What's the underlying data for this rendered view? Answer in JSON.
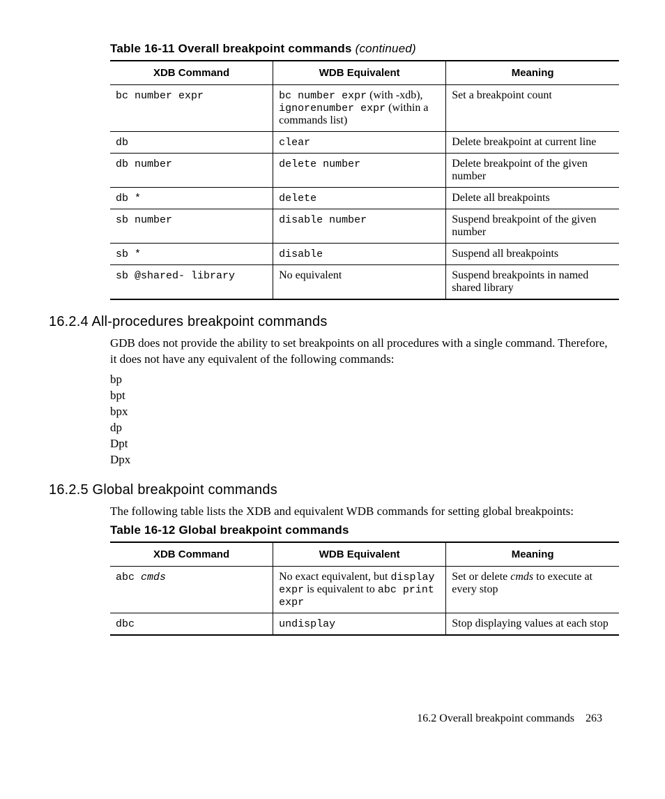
{
  "table1": {
    "caption_prefix": "Table 16-11 Overall breakpoint commands ",
    "caption_suffix": "(continued)",
    "headers": [
      "XDB Command",
      "WDB Equivalent",
      "Meaning"
    ],
    "rows": [
      {
        "xdb_mono": "bc number expr",
        "wdb_parts": [
          {
            "t": "bc number expr",
            "mono": true
          },
          {
            "t": " (with -xdb), ",
            "mono": false
          },
          {
            "t": "ignorenumber expr",
            "mono": true
          },
          {
            "t": " (within a commands list)",
            "mono": false
          }
        ],
        "meaning": "Set a breakpoint count"
      },
      {
        "xdb_mono": "db",
        "wdb_parts": [
          {
            "t": "clear",
            "mono": true
          }
        ],
        "meaning": "Delete breakpoint at current line"
      },
      {
        "xdb_mono": "db number",
        "wdb_parts": [
          {
            "t": "delete number",
            "mono": true
          }
        ],
        "meaning": "Delete breakpoint of the given number"
      },
      {
        "xdb_mono": "db *",
        "wdb_parts": [
          {
            "t": "delete",
            "mono": true
          }
        ],
        "meaning": "Delete all breakpoints"
      },
      {
        "xdb_mono": "sb number",
        "wdb_parts": [
          {
            "t": "disable number",
            "mono": true
          }
        ],
        "meaning": "Suspend breakpoint of the given number"
      },
      {
        "xdb_mono": "sb *",
        "wdb_parts": [
          {
            "t": "disable",
            "mono": true
          }
        ],
        "meaning": "Suspend all breakpoints"
      },
      {
        "xdb_mono": "sb @shared- library",
        "wdb_parts": [
          {
            "t": "No equivalent",
            "mono": false
          }
        ],
        "meaning": "Suspend breakpoints in named shared library"
      }
    ]
  },
  "section1": {
    "heading": "16.2.4 All-procedures breakpoint commands",
    "para": "GDB does not provide the ability to set breakpoints on all procedures with a single command. Therefore, it does not have any equivalent of the following commands:",
    "cmds": [
      "bp",
      "bpt",
      "bpx",
      "dp",
      "Dpt",
      "Dpx"
    ]
  },
  "section2": {
    "heading": "16.2.5 Global breakpoint commands",
    "para": "The following table lists the XDB and equivalent WDB commands for setting global breakpoints:"
  },
  "table2": {
    "caption": "Table 16-12 Global breakpoint commands",
    "headers": [
      "XDB Command",
      "WDB Equivalent",
      "Meaning"
    ],
    "rows": [
      {
        "xdb_parts": [
          {
            "t": "abc ",
            "mono": true,
            "ital": false
          },
          {
            "t": "cmds",
            "mono": true,
            "ital": true
          }
        ],
        "wdb_parts": [
          {
            "t": "No exact equivalent, but ",
            "mono": false
          },
          {
            "t": "display expr",
            "mono": true
          },
          {
            "t": " is equivalent to ",
            "mono": false
          },
          {
            "t": "abc print expr",
            "mono": true
          }
        ],
        "meaning_parts": [
          {
            "t": "Set or delete ",
            "ital": false
          },
          {
            "t": "cmds",
            "ital": true
          },
          {
            "t": " to execute at every stop",
            "ital": false
          }
        ]
      },
      {
        "xdb_parts": [
          {
            "t": "dbc",
            "mono": true,
            "ital": false
          }
        ],
        "wdb_parts": [
          {
            "t": "undisplay",
            "mono": true
          }
        ],
        "meaning_parts": [
          {
            "t": "Stop displaying values at each stop",
            "ital": false
          }
        ]
      }
    ]
  },
  "footer": {
    "section": "16.2 Overall breakpoint commands",
    "page": "263"
  }
}
